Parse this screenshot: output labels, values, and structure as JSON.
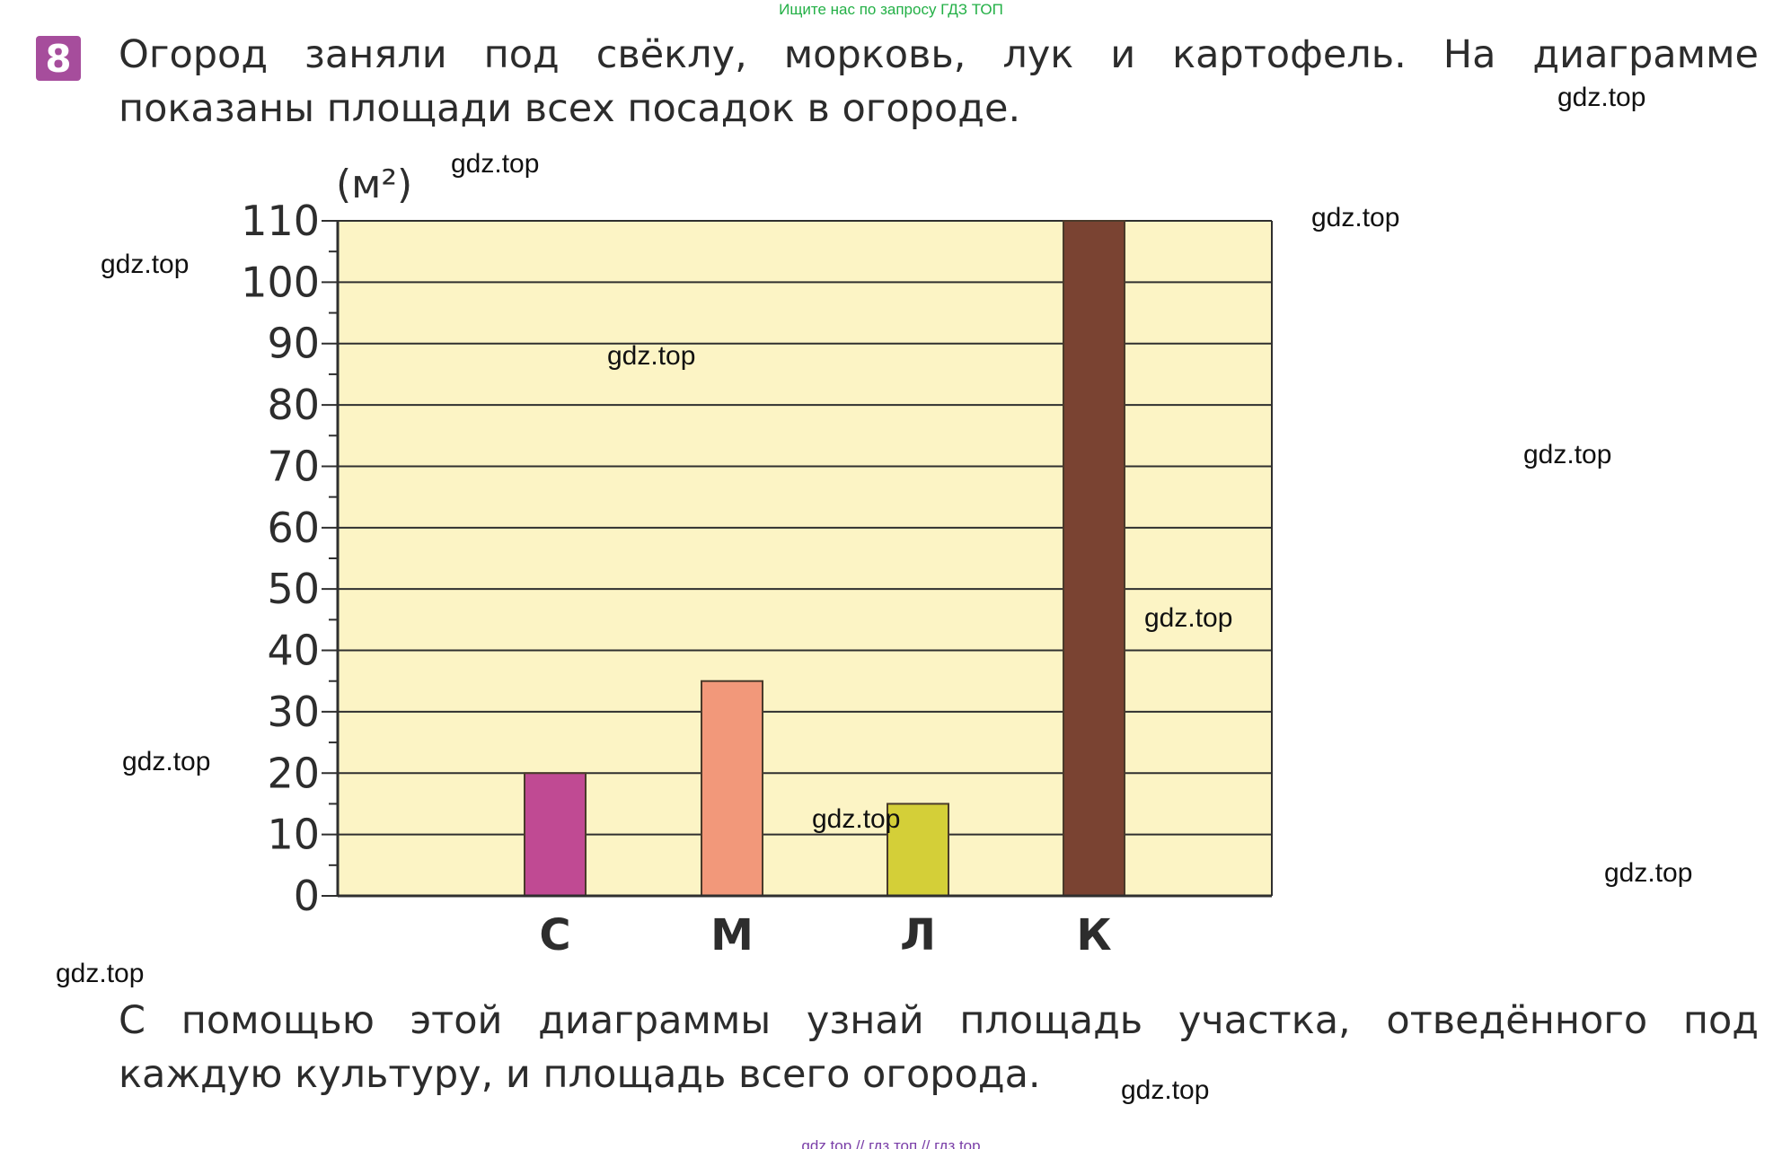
{
  "header_note": "Ищите нас по запросу ГДЗ ТОП",
  "exercise_number": "8",
  "task_lines": [
    "Огород заняли под свёклу, морковь, лук и картофель. На диаграмме",
    "показаны площади всех посадок в огороде."
  ],
  "question_lines": [
    "С помощью этой диаграммы узнай площадь участка, отведённого под",
    "каждую культуру, и площадь всего огорода."
  ],
  "watermarks": [
    "gdz.top",
    "gdz.top",
    "gdz.top",
    "gdz.top",
    "gdz.top",
    "gdz.top",
    "gdz.top",
    "gdz.top",
    "gdz.top",
    "gdz.top",
    "gdz.top",
    "gdz.top"
  ],
  "footer_note": "gdz top // гдз топ // гдз top",
  "colors": {
    "plot_background": "#fcf4c5",
    "gridline": "#2f2f2f",
    "badge": "#a64d9c",
    "bar_s": "#c04a93",
    "bar_m": "#f2987a",
    "bar_l": "#d4cf38",
    "bar_k": "#7a4332"
  },
  "chart_data": {
    "type": "bar",
    "unit_label": "(м²)",
    "categories": [
      "С",
      "М",
      "Л",
      "К"
    ],
    "values": [
      20,
      35,
      15,
      110
    ],
    "bar_colors": [
      "#c04a93",
      "#f2987a",
      "#d4cf38",
      "#7a4332"
    ],
    "ylim": [
      0,
      110
    ],
    "yticks": [
      0,
      10,
      20,
      30,
      40,
      50,
      60,
      70,
      80,
      90,
      100,
      110
    ],
    "grid": true
  }
}
